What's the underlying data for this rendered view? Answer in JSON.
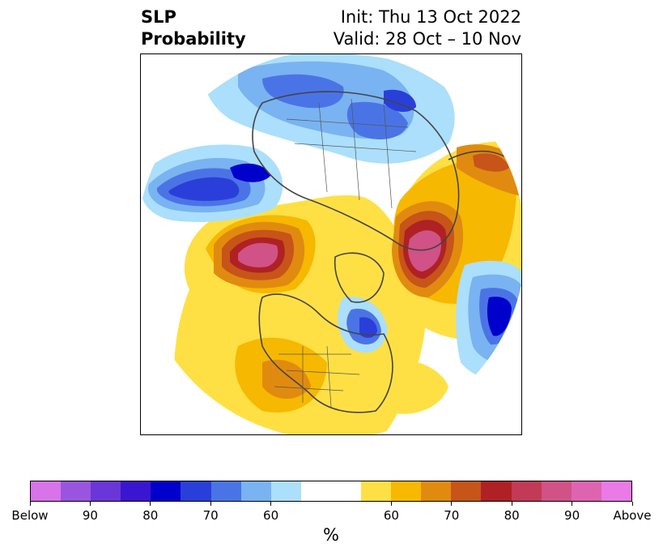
{
  "title": {
    "left_line1": "SLP",
    "left_line2": "Probability",
    "right_line1": "Init: Thu 13 Oct 2022",
    "right_line2": "Valid: 28 Oct – 10 Nov"
  },
  "map": {
    "projection": "north-polar-stereographic",
    "field": "sea-level-pressure tercile probability"
  },
  "colorbar": {
    "colors": [
      "#d873e9",
      "#9a55e0",
      "#6936d8",
      "#3a16d2",
      "#0000cc",
      "#2a3fd9",
      "#4a74e6",
      "#79b3f1",
      "#abdffb",
      "#ffffff",
      "#ffe044",
      "#f6b800",
      "#e08b0f",
      "#c75418",
      "#af2124",
      "#c23a55",
      "#d05286",
      "#de64b0",
      "#e97ae6"
    ],
    "tick_labels": [
      "Below",
      "90",
      "80",
      "70",
      "60",
      "60",
      "70",
      "80",
      "90",
      "Above"
    ],
    "unit": "%"
  }
}
